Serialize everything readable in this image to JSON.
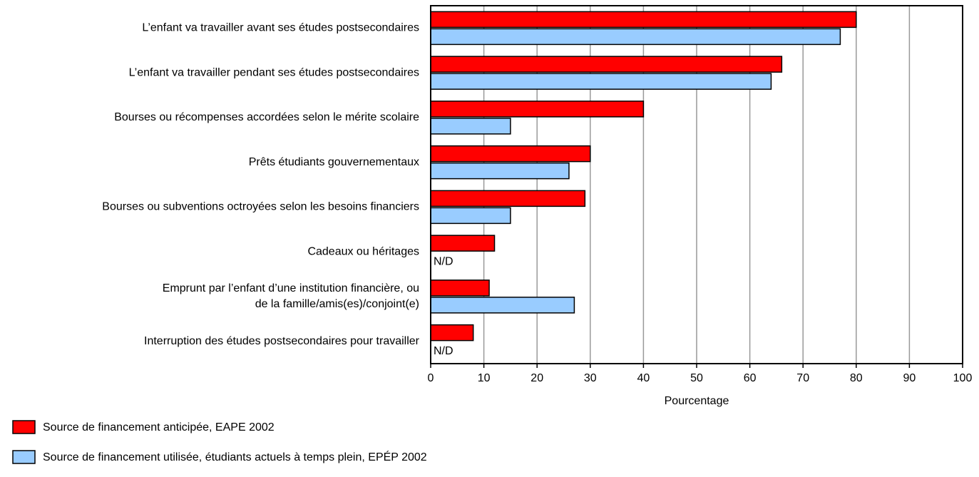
{
  "chart_data": {
    "type": "hbar",
    "categories": [
      "L’enfant va travailler avant ses études postsecondaires",
      "L’enfant va travailler pendant ses études postsecondaires",
      "Bourses ou récompenses accordées selon le mérite scolaire",
      "Prêts étudiants gouvernementaux",
      "Bourses ou subventions octroyées selon les besoins financiers",
      "Cadeaux ou héritages",
      [
        "Emprunt par l’enfant d’une institution financière, ou",
        "de la famille/amis(es)/conjoint(e)"
      ],
      "Interruption des études postsecondaires pour travailler"
    ],
    "series": [
      {
        "name": "Source de financement anticipée, EAPE 2002",
        "color": "#ff0000",
        "values": [
          80,
          66,
          40,
          30,
          29,
          12,
          11,
          8
        ]
      },
      {
        "name": "Source de financement utilisée, étudiants actuels à temps plein, EPÉP 2002",
        "color": "#99ccff",
        "values": [
          77,
          64,
          15,
          26,
          15,
          null,
          27,
          null
        ],
        "value_labels": [
          null,
          null,
          null,
          null,
          null,
          "N/D",
          null,
          "N/D"
        ]
      }
    ],
    "xlim": [
      0,
      100
    ],
    "xticks": [
      0,
      10,
      20,
      30,
      40,
      50,
      60,
      70,
      80,
      90,
      100
    ],
    "x_label": "Pourcentage",
    "grid": true,
    "legend": "bottom-left"
  }
}
